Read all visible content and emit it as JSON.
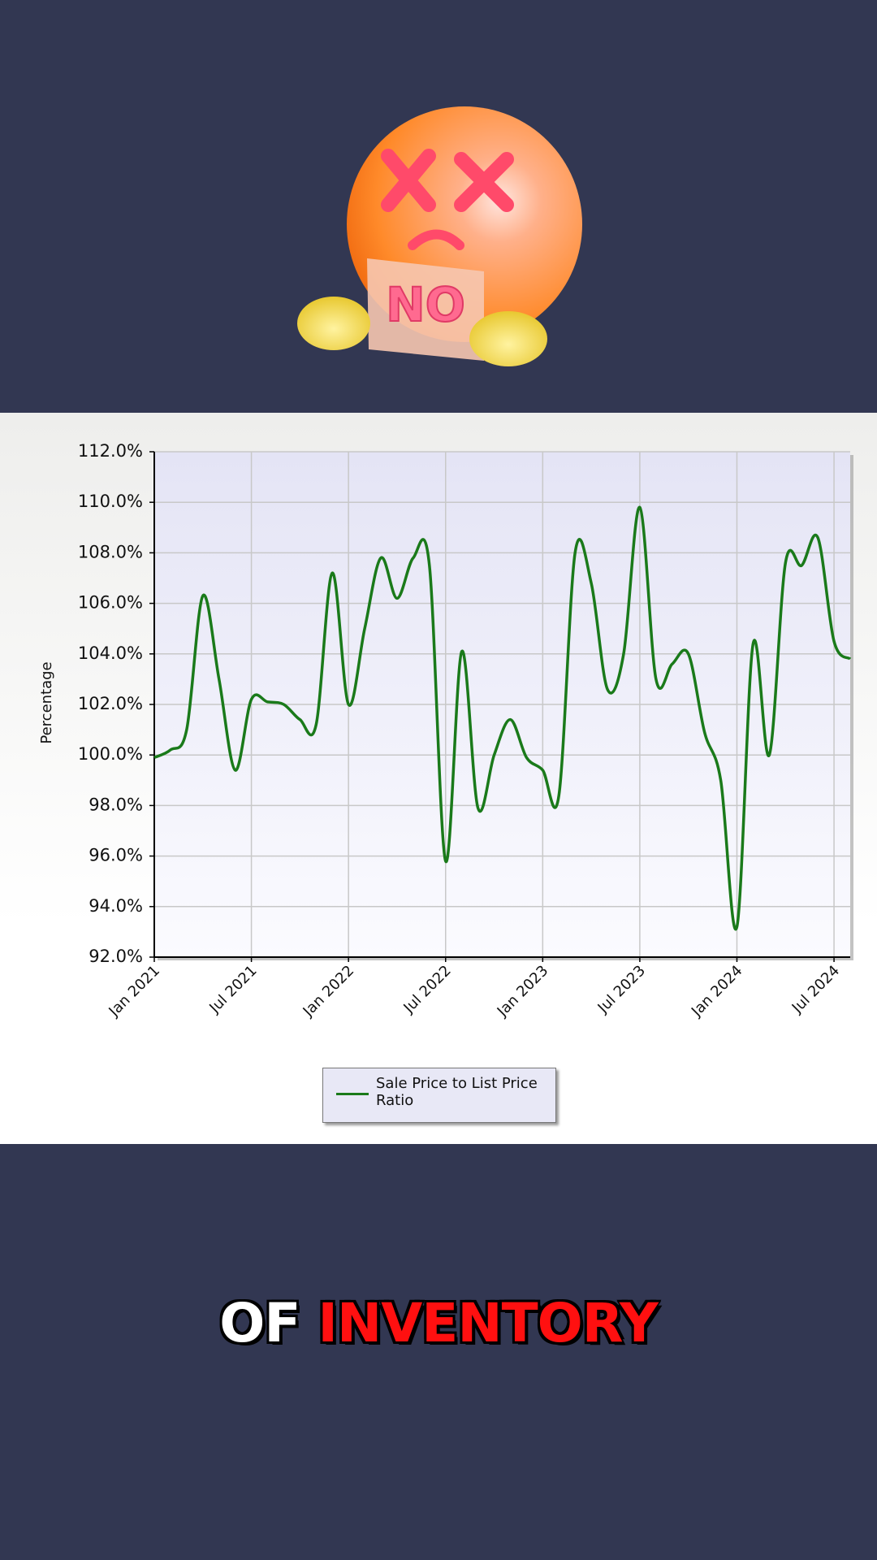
{
  "sticker_text": "NO",
  "caption": {
    "words": [
      "OF",
      "INVENTORY"
    ]
  },
  "chart_data": {
    "type": "line",
    "y_label": "Percentage",
    "x": [
      "2021-01",
      "2021-02",
      "2021-03",
      "2021-04",
      "2021-05",
      "2021-06",
      "2021-07",
      "2021-08",
      "2021-09",
      "2021-10",
      "2021-11",
      "2021-12",
      "2022-01",
      "2022-02",
      "2022-03",
      "2022-04",
      "2022-05",
      "2022-06",
      "2022-07",
      "2022-08",
      "2022-09",
      "2022-10",
      "2022-11",
      "2022-12",
      "2023-01",
      "2023-02",
      "2023-03",
      "2023-04",
      "2023-05",
      "2023-06",
      "2023-07",
      "2023-08",
      "2023-09",
      "2023-10",
      "2023-11",
      "2023-12",
      "2024-01",
      "2024-02",
      "2024-03",
      "2024-04",
      "2024-05",
      "2024-06",
      "2024-07",
      "2024-08"
    ],
    "series": [
      {
        "name": "Sale Price to List Price Ratio",
        "color": "#1a7a1a",
        "values": [
          99.9,
          100.2,
          101.0,
          106.3,
          103.0,
          99.4,
          102.2,
          102.1,
          102.0,
          101.4,
          101.2,
          107.2,
          102.0,
          105.0,
          107.8,
          106.2,
          107.8,
          107.5,
          95.8,
          104.1,
          97.9,
          100.0,
          101.4,
          99.9,
          99.4,
          98.4,
          108.0,
          106.8,
          102.6,
          104.0,
          109.8,
          103.0,
          103.6,
          104.0,
          100.9,
          99.0,
          93.2,
          104.4,
          100.0,
          107.6,
          107.5,
          108.6,
          104.5,
          103.8
        ]
      }
    ],
    "xlim": [
      "2021-01",
      "2024-08"
    ],
    "xticks": [
      {
        "value": "2021-01",
        "label": "Jan 2021"
      },
      {
        "value": "2021-07",
        "label": "Jul 2021"
      },
      {
        "value": "2022-01",
        "label": "Jan 2022"
      },
      {
        "value": "2022-07",
        "label": "Jul 2022"
      },
      {
        "value": "2023-01",
        "label": "Jan 2023"
      },
      {
        "value": "2023-07",
        "label": "Jul 2023"
      },
      {
        "value": "2024-01",
        "label": "Jan 2024"
      },
      {
        "value": "2024-07",
        "label": "Jul 2024"
      }
    ],
    "ylim": [
      92,
      112
    ],
    "yticks": [
      {
        "value": 92,
        "label": "92.0%"
      },
      {
        "value": 94,
        "label": "94.0%"
      },
      {
        "value": 96,
        "label": "96.0%"
      },
      {
        "value": 98,
        "label": "98.0%"
      },
      {
        "value": 100,
        "label": "100.0%"
      },
      {
        "value": 102,
        "label": "102.0%"
      },
      {
        "value": 104,
        "label": "104.0%"
      },
      {
        "value": 106,
        "label": "106.0%"
      },
      {
        "value": 108,
        "label": "108.0%"
      },
      {
        "value": 110,
        "label": "110.0%"
      },
      {
        "value": 112,
        "label": "112.0%"
      }
    ],
    "grid": true
  }
}
